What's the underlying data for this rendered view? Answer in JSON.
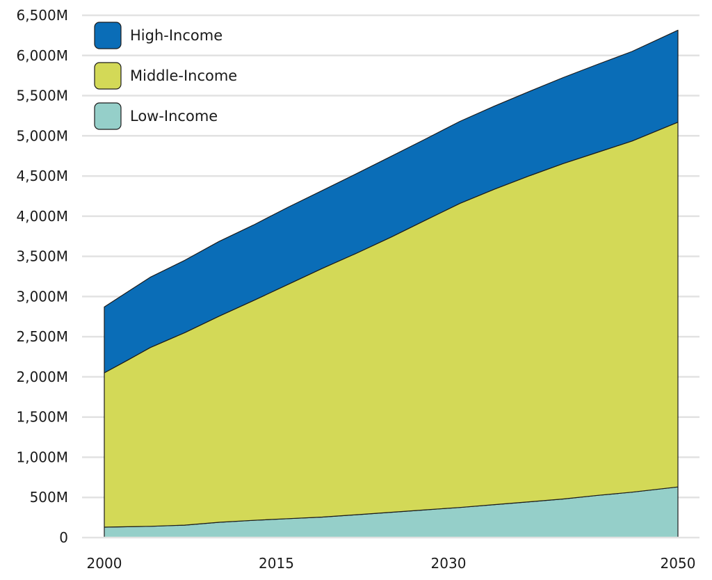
{
  "chart_data": {
    "type": "area",
    "stacked": true,
    "title": "",
    "xlabel": "",
    "ylabel": "",
    "x": [
      2000,
      2002,
      2004,
      2007,
      2010,
      2013,
      2016,
      2019,
      2022,
      2025,
      2028,
      2031,
      2034,
      2037,
      2040,
      2043,
      2046,
      2050
    ],
    "x_ticks": [
      "2000",
      "2015",
      "2030",
      "2050"
    ],
    "x_tick_values": [
      2000,
      2015,
      2030,
      2050
    ],
    "xlim": [
      2000,
      2050
    ],
    "ylim": [
      0,
      6500
    ],
    "y_ticks": [
      0,
      500,
      1000,
      1500,
      2000,
      2500,
      3000,
      3500,
      4000,
      4500,
      5000,
      5500,
      6000,
      6500
    ],
    "y_tick_labels": [
      "0",
      "500M",
      "1,000M",
      "1,500M",
      "2,000M",
      "2,500M",
      "3,000M",
      "3,500M",
      "4,000M",
      "4,500M",
      "5,000M",
      "5,500M",
      "6,000M",
      "6,500M"
    ],
    "grid": true,
    "legend": "top-left",
    "series": [
      {
        "name": "Low-Income",
        "color": "#95cfc9",
        "values": [
          130,
          135,
          140,
          155,
          190,
          215,
          235,
          255,
          285,
          315,
          345,
          375,
          410,
          445,
          480,
          525,
          565,
          630
        ]
      },
      {
        "name": "Middle-Income",
        "color": "#d3d957",
        "values": [
          1920,
          2070,
          2225,
          2395,
          2565,
          2735,
          2915,
          3095,
          3255,
          3425,
          3605,
          3785,
          3925,
          4055,
          4175,
          4270,
          4370,
          4540
        ]
      },
      {
        "name": "High-Income",
        "color": "#0a6db7",
        "values": [
          820,
          850,
          875,
          900,
          930,
          940,
          960,
          970,
          990,
          1005,
          1010,
          1020,
          1035,
          1050,
          1070,
          1095,
          1115,
          1145
        ]
      }
    ]
  }
}
